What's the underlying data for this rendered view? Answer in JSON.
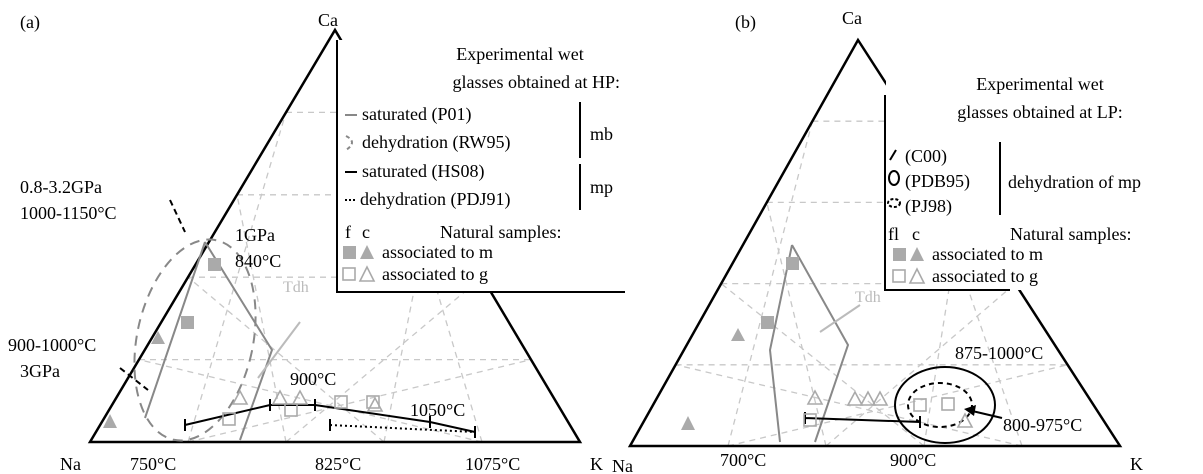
{
  "panels": [
    {
      "label": "(a)",
      "vertices": {
        "top": "Ca",
        "left": "Na",
        "right": "K"
      },
      "legend": {
        "title": [
          "Experimental wet",
          "glasses obtained at HP:"
        ],
        "entries": [
          "saturated (P01)",
          "dehydration (RW95)",
          "saturated (HS08)",
          "dehydration (PDJ91)"
        ],
        "groups": [
          "mb",
          "mp"
        ],
        "natural": {
          "columns": [
            "f",
            "c"
          ],
          "title": "Natural samples:",
          "rows": [
            "associated to m",
            "associated to g"
          ]
        }
      },
      "annotations": [
        "0.8-3.2GPa",
        "1000-1150°C",
        "1GPa",
        "840°C",
        "Tdh",
        "900-1000°C",
        "3GPa",
        "900°C",
        "1050°C",
        "750°C",
        "825°C",
        "1075°C"
      ]
    },
    {
      "label": "(b)",
      "vertices": {
        "top": "Ca",
        "left": "Na",
        "right": "K"
      },
      "legend": {
        "title": [
          "Experimental wet",
          "glasses obtained at LP:"
        ],
        "entries": [
          "(C00)",
          "(PDB95)",
          "(PJ98)"
        ],
        "groups": [
          "dehydration of mp"
        ],
        "natural": {
          "columns": [
            "fl",
            "c"
          ],
          "title": "Natural samples:",
          "rows": [
            "associated to m",
            "associated to g"
          ]
        }
      },
      "annotations": [
        "Tdh",
        "875-1000°C",
        "800-975°C",
        "700°C",
        "900°C"
      ]
    }
  ]
}
